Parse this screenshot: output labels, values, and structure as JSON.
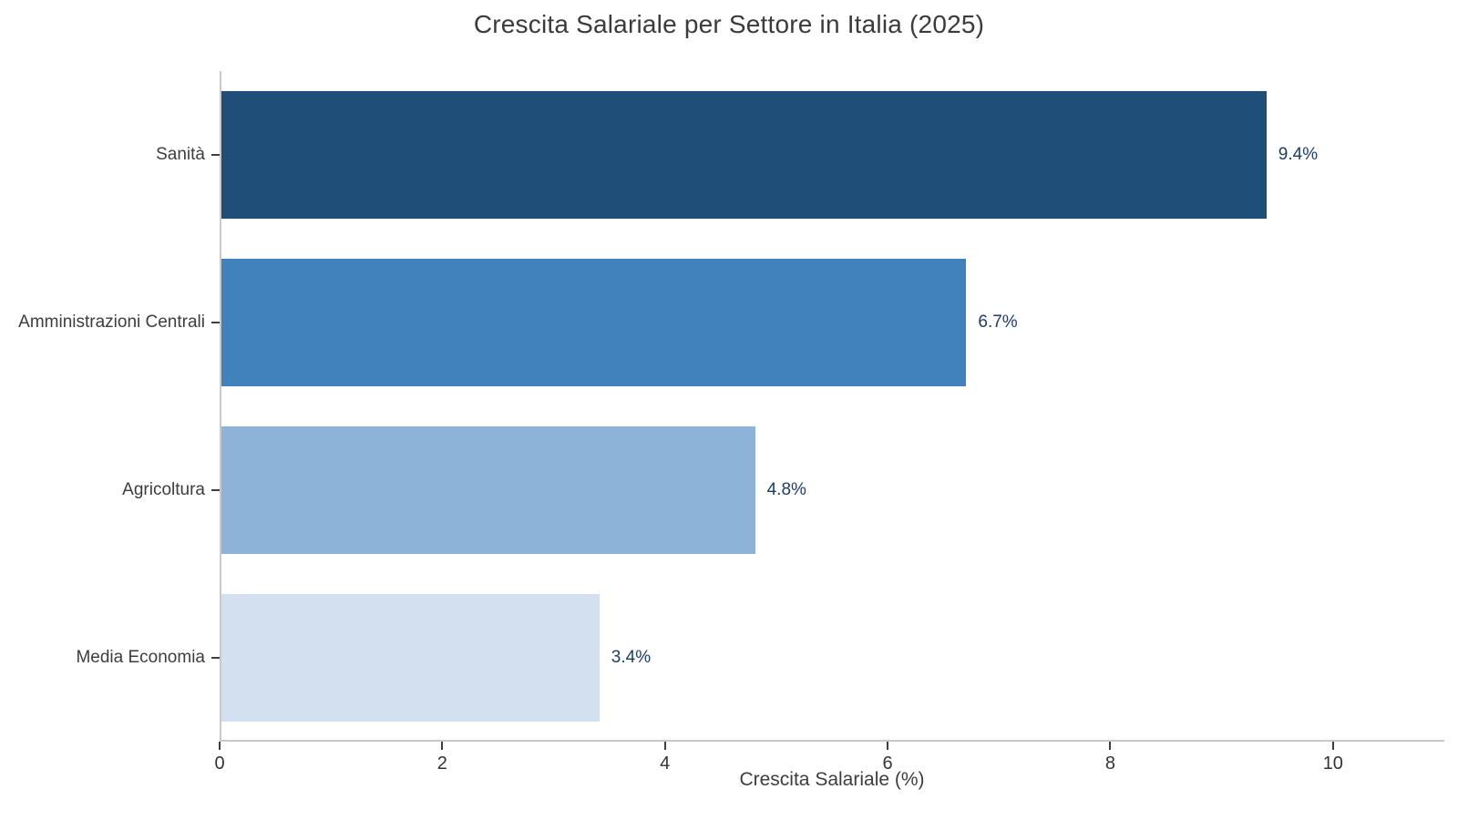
{
  "chart_data": {
    "type": "bar",
    "orientation": "horizontal",
    "title": "Crescita Salariale per Settore in Italia (2025)",
    "categories": [
      "Sanità",
      "Amministrazioni Centrali",
      "Agricoltura",
      "Media Economia"
    ],
    "values": [
      9.4,
      6.7,
      4.8,
      3.4
    ],
    "value_labels": [
      "9.4%",
      "6.7%",
      "4.8%",
      "3.4%"
    ],
    "bar_colors": [
      "#1f4e78",
      "#4182bd",
      "#8db3d9",
      "#d2e0f0"
    ],
    "xlabel": "Crescita Salariale (%)",
    "ylabel": "",
    "x_ticks": [
      "0",
      "2",
      "4",
      "6",
      "8",
      "10"
    ],
    "x_tick_values": [
      0,
      2,
      4,
      6,
      8,
      10
    ],
    "xlim": [
      0,
      11
    ],
    "grid": false,
    "legend": "none",
    "value_label_color": "#1b3d6e",
    "axis_line_color": "#c9c9c9",
    "tick_color": "#3d3d3d",
    "text_color": "#3b3b3b"
  }
}
